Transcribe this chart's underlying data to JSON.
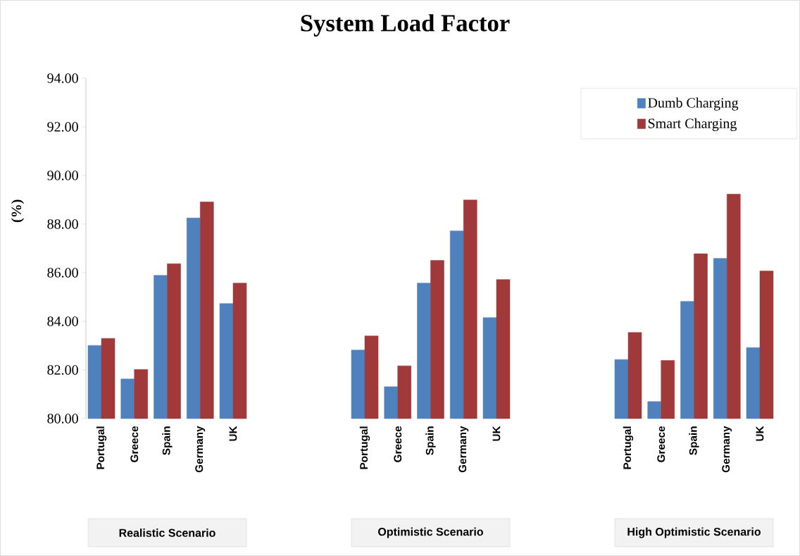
{
  "chart_data": {
    "type": "bar",
    "title": "System Load Factor",
    "ylabel": "(%)",
    "categories": [
      "Portugal",
      "Greece",
      "Spain",
      "Germany",
      "UK",
      null,
      null,
      null,
      "Portugal",
      "Greece",
      "Spain",
      "Germany",
      "UK",
      null,
      null,
      null,
      "Portugal",
      "Greece",
      "Spain",
      "Germany",
      "UK"
    ],
    "series": [
      {
        "name": "Dumb Charging",
        "color": "#4f81bd",
        "values": [
          83.01,
          81.63,
          85.89,
          88.25,
          84.73,
          null,
          null,
          null,
          82.82,
          81.31,
          85.57,
          87.72,
          84.15,
          null,
          null,
          null,
          82.43,
          80.7,
          84.82,
          86.59,
          82.92
        ]
      },
      {
        "name": "Smart Charging",
        "color": "#a0393a",
        "values": [
          83.3,
          82.02,
          86.37,
          88.91,
          85.57,
          null,
          null,
          null,
          83.4,
          82.17,
          86.51,
          88.99,
          85.72,
          null,
          null,
          null,
          83.54,
          82.39,
          86.78,
          89.23,
          86.07
        ]
      }
    ],
    "ylim": [
      80,
      94
    ],
    "yticks": [
      {
        "value": 80,
        "label": "80.00"
      },
      {
        "value": 82,
        "label": "82.00"
      },
      {
        "value": 84,
        "label": "84.00"
      },
      {
        "value": 86,
        "label": "86.00"
      },
      {
        "value": 88,
        "label": "88.00"
      },
      {
        "value": 90,
        "label": "90.00"
      },
      {
        "value": 92,
        "label": "92.00"
      },
      {
        "value": 94,
        "label": "94.00"
      }
    ],
    "legend": "top right",
    "annotations": [
      "Realistic Scenario",
      "Optimistic Scenario",
      "High Optimistic Scenario"
    ]
  }
}
